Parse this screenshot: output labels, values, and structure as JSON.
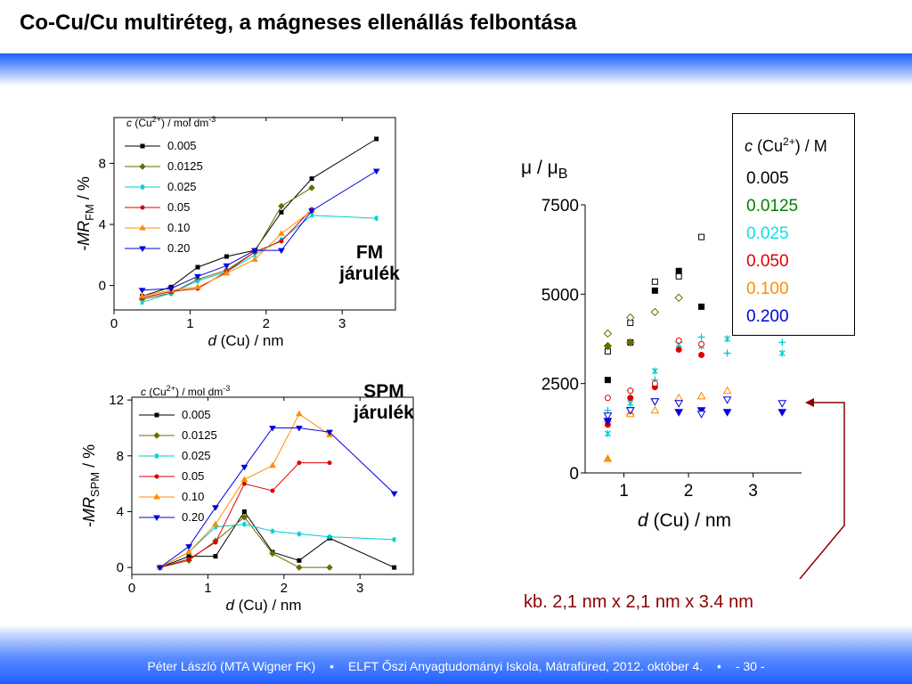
{
  "slide": {
    "title": "Co-Cu/Cu multiréteg, a mágneses ellenállás felbontása",
    "fm_label_1": "FM",
    "fm_label_2": "járulék",
    "spm_label_1": "SPM",
    "spm_label_2": "járulék",
    "size_note": "kb. 2,1 nm x 2,1 nm x 3.4 nm",
    "footer": {
      "author": "Péter László (MTA Wigner FK)",
      "sep1": "•",
      "event": "ELFT Őszi Anyagtudományi Iskola, Mátrafüred, 2012. október 4.",
      "sep2": "•",
      "page": "- 30 -"
    },
    "colors": {
      "band": "#1f5fff",
      "note": "#8b0000"
    }
  },
  "moment_legend": {
    "title_c": "c",
    "title_rest": "(Cu",
    "title_sup": "2+",
    "title_unit": ") / M",
    "items": [
      {
        "label": "0.005",
        "color": "#000000"
      },
      {
        "label": "0.0125",
        "color": "#008000"
      },
      {
        "label": "0.025",
        "color": "#00e5e5"
      },
      {
        "label": "0.050",
        "color": "#e00000"
      },
      {
        "label": "0.100",
        "color": "#ff8c00"
      },
      {
        "label": "0.200",
        "color": "#0000dd"
      }
    ]
  },
  "chart_data": [
    {
      "id": "fm",
      "type": "line",
      "ylabel_prefix": "-MR",
      "ylabel_sub": "FM",
      "ylabel_suffix": " / %",
      "xlabel_d": "d",
      "xlabel_rest": " (Cu)  /  nm",
      "legend_title_c": "c",
      "legend_title_rest": " (Cu",
      "legend_title_sup": "2+",
      "legend_title_unit": ") / mol dm",
      "legend_title_unit_sup": "-3",
      "xlim": [
        0,
        3.7
      ],
      "ylim": [
        -1.6,
        11
      ],
      "xticks": [
        0,
        1,
        2,
        3
      ],
      "yticks": [
        0,
        4,
        8
      ],
      "series": [
        {
          "name": "0.005",
          "color": "#000000",
          "marker": "square",
          "x": [
            0.37,
            0.75,
            1.1,
            1.48,
            1.85,
            2.2,
            2.6,
            3.45
          ],
          "y": [
            -0.7,
            -0.1,
            1.2,
            1.9,
            2.3,
            4.8,
            7.0,
            9.6
          ]
        },
        {
          "name": "0.0125",
          "color": "#6b6b00",
          "marker": "diamond",
          "x": [
            0.37,
            0.75,
            1.1,
            1.48,
            1.85,
            2.2,
            2.6
          ],
          "y": [
            -0.9,
            -0.5,
            0.4,
            1.0,
            2.2,
            5.2,
            6.4
          ]
        },
        {
          "name": "0.025",
          "color": "#00cccc",
          "marker": "x",
          "x": [
            0.37,
            0.75,
            1.1,
            1.48,
            1.85,
            2.2,
            2.6,
            3.45
          ],
          "y": [
            -1.1,
            -0.5,
            0.3,
            0.9,
            2.0,
            3.0,
            4.6,
            4.4
          ]
        },
        {
          "name": "0.05",
          "color": "#dd0000",
          "marker": "circle",
          "x": [
            0.37,
            0.75,
            1.1,
            1.48,
            1.85,
            2.2,
            2.6
          ],
          "y": [
            -0.8,
            -0.4,
            -0.2,
            0.9,
            2.2,
            2.9,
            5.0
          ]
        },
        {
          "name": "0.10",
          "color": "#ff8c00",
          "marker": "triangle",
          "x": [
            0.37,
            0.75,
            1.1,
            1.48,
            1.85,
            2.2,
            2.6
          ],
          "y": [
            -0.7,
            -0.3,
            -0.1,
            0.8,
            1.7,
            3.4,
            4.9
          ]
        },
        {
          "name": "0.20",
          "color": "#0000dd",
          "marker": "triangle-down",
          "x": [
            0.37,
            0.75,
            1.1,
            1.48,
            1.85,
            2.2,
            2.6,
            3.45
          ],
          "y": [
            -0.3,
            -0.2,
            0.6,
            1.3,
            2.3,
            2.3,
            4.9,
            7.5
          ]
        }
      ]
    },
    {
      "id": "spm",
      "type": "line",
      "ylabel_prefix": "-MR",
      "ylabel_sub": "SPM",
      "ylabel_suffix": " / %",
      "xlabel_d": "d",
      "xlabel_rest": " (Cu)  /  nm",
      "legend_title_c": "c",
      "legend_title_rest": " (Cu",
      "legend_title_sup": "2+",
      "legend_title_unit": ") / mol dm",
      "legend_title_unit_sup": "-3",
      "xlim": [
        0,
        3.7
      ],
      "ylim": [
        -0.5,
        12.2
      ],
      "xticks": [
        0,
        1,
        2,
        3
      ],
      "yticks": [
        0,
        4,
        8,
        12
      ],
      "series": [
        {
          "name": "0.005",
          "color": "#000000",
          "marker": "square",
          "x": [
            0.37,
            0.75,
            1.1,
            1.48,
            1.85,
            2.2,
            2.6,
            3.45
          ],
          "y": [
            0.0,
            0.8,
            0.8,
            4.0,
            1.1,
            0.5,
            2.1,
            0.0
          ]
        },
        {
          "name": "0.0125",
          "color": "#6b6b00",
          "marker": "diamond",
          "x": [
            0.37,
            0.75,
            1.1,
            1.48,
            1.85,
            2.2,
            2.6
          ],
          "y": [
            0.0,
            0.5,
            1.9,
            3.6,
            1.0,
            0.0,
            0.0
          ]
        },
        {
          "name": "0.025",
          "color": "#00cccc",
          "marker": "x",
          "x": [
            0.37,
            0.75,
            1.1,
            1.48,
            1.85,
            2.2,
            2.6,
            3.45
          ],
          "y": [
            0.0,
            1.1,
            2.9,
            3.1,
            2.6,
            2.4,
            2.2,
            2.0
          ]
        },
        {
          "name": "0.05",
          "color": "#dd0000",
          "marker": "circle",
          "x": [
            0.37,
            0.75,
            1.1,
            1.48,
            1.85,
            2.2,
            2.6
          ],
          "y": [
            0.0,
            0.6,
            1.8,
            6.0,
            5.5,
            7.5,
            7.5
          ]
        },
        {
          "name": "0.10",
          "color": "#ff8c00",
          "marker": "triangle",
          "x": [
            0.37,
            0.75,
            1.1,
            1.48,
            1.85,
            2.2,
            2.6
          ],
          "y": [
            0.0,
            1.1,
            3.1,
            6.3,
            7.3,
            11.0,
            9.5
          ]
        },
        {
          "name": "0.20",
          "color": "#0000dd",
          "marker": "triangle-down",
          "x": [
            0.37,
            0.75,
            1.1,
            1.48,
            1.85,
            2.2,
            2.6,
            3.45
          ],
          "y": [
            0.0,
            1.5,
            4.3,
            7.2,
            10.0,
            10.0,
            9.7,
            5.3
          ]
        }
      ]
    },
    {
      "id": "moment",
      "type": "scatter",
      "ylabel_mu": "μ",
      "ylabel_sep": " / ",
      "ylabel_muB": "μ",
      "ylabel_B": "B",
      "xlabel_d": "d",
      "xlabel_rest": " (Cu)  /  nm",
      "xlim": [
        0.4,
        3.75
      ],
      "ylim": [
        0,
        7500
      ],
      "xticks": [
        1,
        2,
        3
      ],
      "yticks": [
        0,
        2500,
        5000,
        7500
      ],
      "series": [
        {
          "name": "0.005 filled",
          "color": "#000000",
          "marker": "square",
          "filled": true,
          "x": [
            0.75,
            1.1,
            1.48,
            1.85,
            2.2
          ],
          "y": [
            2600,
            3650,
            5100,
            5650,
            4650
          ]
        },
        {
          "name": "0.005 open",
          "color": "#000000",
          "marker": "square",
          "filled": false,
          "x": [
            0.75,
            1.1,
            1.48,
            1.85,
            2.2
          ],
          "y": [
            3400,
            4200,
            5350,
            5500,
            6600
          ]
        },
        {
          "name": "0.0125 filled",
          "color": "#6b6b00",
          "marker": "diamond",
          "filled": true,
          "x": [
            0.75,
            1.1
          ],
          "y": [
            3550,
            3650
          ]
        },
        {
          "name": "0.0125 open",
          "color": "#6b6b00",
          "marker": "diamond",
          "filled": false,
          "x": [
            0.75,
            1.1,
            1.48,
            1.85
          ],
          "y": [
            3900,
            4350,
            4500,
            4900
          ]
        },
        {
          "name": "0.025 x",
          "color": "#00cccc",
          "marker": "x",
          "filled": true,
          "x": [
            0.75,
            1.1,
            1.48,
            1.85,
            2.2,
            2.6,
            3.45
          ],
          "y": [
            1100,
            1950,
            2850,
            3600,
            3550,
            3750,
            3350
          ]
        },
        {
          "name": "0.025 plus",
          "color": "#00cccc",
          "marker": "plus",
          "filled": false,
          "x": [
            0.75,
            1.1,
            1.48,
            1.85,
            2.2,
            2.6,
            3.45
          ],
          "y": [
            1750,
            2300,
            2600,
            3650,
            3800,
            3350,
            3650
          ]
        },
        {
          "name": "0.05 filled",
          "color": "#dd0000",
          "marker": "circle",
          "filled": true,
          "x": [
            0.75,
            1.1,
            1.48,
            1.85,
            2.2
          ],
          "y": [
            1350,
            2100,
            2400,
            3450,
            3300
          ]
        },
        {
          "name": "0.05 open",
          "color": "#dd0000",
          "marker": "circle",
          "filled": false,
          "x": [
            0.75,
            1.1,
            1.48,
            1.85,
            2.2
          ],
          "y": [
            2100,
            2300,
            2500,
            3700,
            3600
          ]
        },
        {
          "name": "0.10 filled",
          "color": "#ff8c00",
          "marker": "triangle",
          "filled": true,
          "x": [
            0.75,
            1.1,
            2.2
          ],
          "y": [
            400,
            1700,
            2150
          ]
        },
        {
          "name": "0.10 open",
          "color": "#ff8c00",
          "marker": "triangle",
          "filled": false,
          "x": [
            0.75,
            1.1,
            1.48,
            1.85,
            2.2,
            2.6
          ],
          "y": [
            1500,
            1650,
            1750,
            2100,
            2150,
            2300
          ]
        },
        {
          "name": "0.20 filled",
          "color": "#0000dd",
          "marker": "triangle-down",
          "filled": true,
          "x": [
            0.75,
            1.1,
            1.48,
            1.85,
            2.2,
            2.6,
            3.45
          ],
          "y": [
            1450,
            1750,
            2000,
            1700,
            1750,
            1700,
            1700
          ]
        },
        {
          "name": "0.20 open",
          "color": "#0000dd",
          "marker": "triangle-down",
          "filled": false,
          "x": [
            0.75,
            1.1,
            1.48,
            1.85,
            2.2,
            2.6,
            3.45
          ],
          "y": [
            1600,
            1750,
            2000,
            1950,
            1650,
            2050,
            1950
          ]
        }
      ]
    }
  ]
}
